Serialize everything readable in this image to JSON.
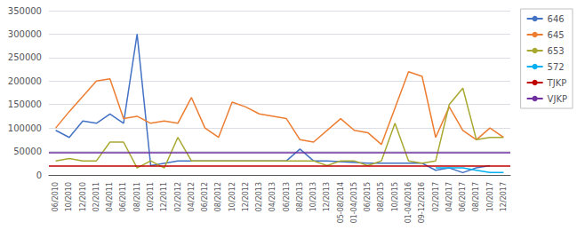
{
  "chart_data": {
    "type": "line",
    "categories": [
      "06/2010",
      "10/2010",
      "12/2010",
      "02/2011",
      "04/2011",
      "06/2011",
      "08/2011",
      "10/2011",
      "12/2011",
      "02/2012",
      "04/2012",
      "06/2012",
      "08/2012",
      "10/2012",
      "12/2012",
      "02/2013",
      "04/2013",
      "06/2013",
      "08/2013",
      "10/2013",
      "12/2013",
      "05-08/2014",
      "01-04/2015",
      "06/2015",
      "08/2015",
      "10/2015",
      "01-04/2016",
      "09-12/2016",
      "02/2017",
      "04/2017",
      "06/2017",
      "08/2017",
      "10/2017",
      "12/2017"
    ],
    "series": [
      {
        "name": "646",
        "color": "#4472C4",
        "values": [
          95000,
          80000,
          115000,
          110000,
          130000,
          110000,
          300000,
          20000,
          null,
          30000,
          30000,
          30000,
          30000,
          30000,
          30000,
          30000,
          30000,
          30000,
          55000,
          30000,
          30000,
          null,
          null,
          25000,
          25000,
          25000,
          25000,
          25000,
          10000,
          15000,
          5000,
          15000,
          20000,
          null
        ]
      },
      {
        "name": "645",
        "color": "#ED7D31",
        "values": [
          100000,
          135000,
          null,
          200000,
          205000,
          120000,
          125000,
          110000,
          115000,
          110000,
          165000,
          100000,
          80000,
          155000,
          145000,
          130000,
          null,
          120000,
          75000,
          70000,
          null,
          120000,
          95000,
          90000,
          65000,
          null,
          220000,
          210000,
          80000,
          145000,
          95000,
          75000,
          100000,
          80000
        ]
      },
      {
        "name": "653",
        "color": "#A9A831",
        "values": [
          30000,
          35000,
          30000,
          30000,
          70000,
          70000,
          15000,
          30000,
          15000,
          80000,
          30000,
          30000,
          30000,
          30000,
          30000,
          30000,
          30000,
          30000,
          30000,
          30000,
          20000,
          30000,
          30000,
          20000,
          30000,
          110000,
          30000,
          25000,
          30000,
          150000,
          185000,
          75000,
          80000,
          80000
        ]
      },
      {
        "name": "572",
        "color": "#00B0F0",
        "values": [
          null,
          null,
          null,
          null,
          null,
          null,
          null,
          null,
          null,
          null,
          null,
          null,
          null,
          null,
          null,
          null,
          null,
          null,
          null,
          null,
          null,
          null,
          null,
          null,
          null,
          null,
          null,
          null,
          15000,
          15000,
          15000,
          10000,
          5000,
          5000
        ]
      },
      {
        "name": "TJKP",
        "color": "#C00000",
        "type": "hline",
        "value": 20000
      },
      {
        "name": "VJKP",
        "color": "#7030A0",
        "type": "hline",
        "value": 47000
      }
    ],
    "ylim": [
      0,
      350000
    ],
    "yticks": [
      0,
      50000,
      100000,
      150000,
      200000,
      250000,
      300000,
      350000
    ],
    "grid": true,
    "legend": "right"
  }
}
